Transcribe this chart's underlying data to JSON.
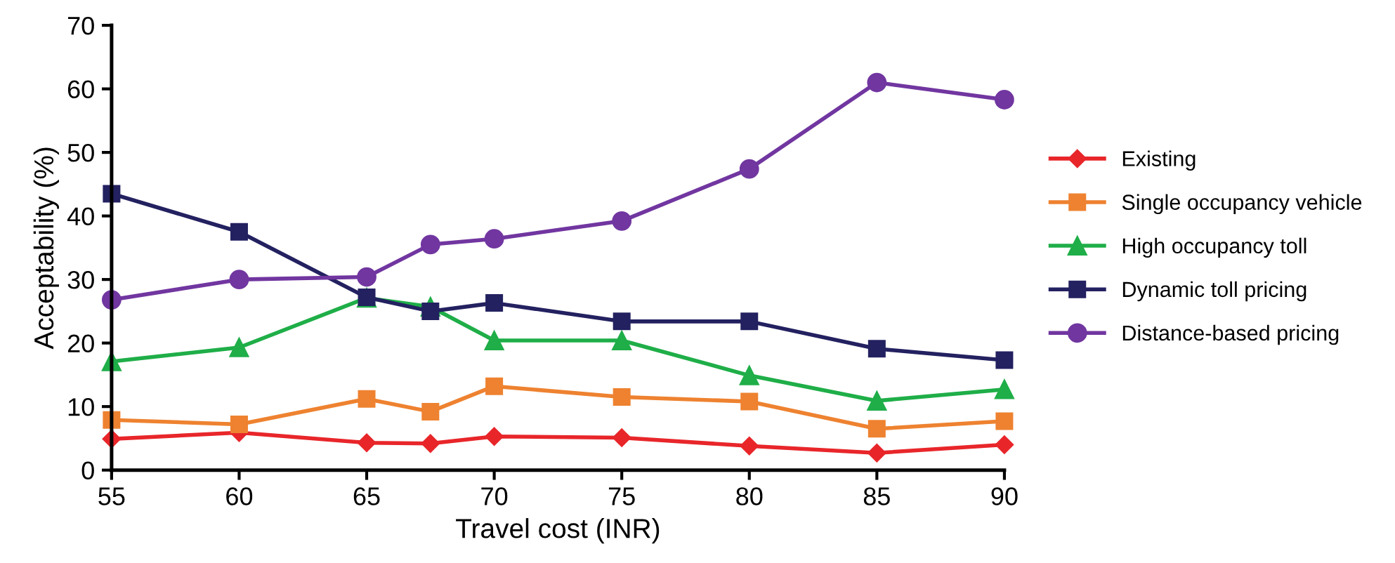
{
  "chart_data": {
    "type": "line",
    "xlabel": "Travel cost (INR)",
    "ylabel": "Acceptability (%)",
    "x": [
      55,
      60,
      65,
      67.5,
      70,
      75,
      80,
      85,
      90
    ],
    "xlim": [
      55,
      90
    ],
    "xticks": [
      55,
      60,
      65,
      70,
      75,
      80,
      85,
      90
    ],
    "ylim": [
      0,
      70
    ],
    "yticks": [
      0,
      10,
      20,
      30,
      40,
      50,
      60,
      70
    ],
    "grid": false,
    "legend": "right",
    "line_style": "solid",
    "series": [
      {
        "name": "Existing",
        "color": "#e8262a",
        "marker": "diamond",
        "values": [
          4.9,
          5.9,
          4.3,
          4.2,
          5.3,
          5.1,
          3.8,
          2.7,
          4.0
        ]
      },
      {
        "name": "Single occupancy vehicle",
        "color": "#ee8230",
        "marker": "square",
        "values": [
          7.9,
          7.2,
          11.2,
          9.2,
          13.2,
          11.5,
          10.8,
          6.5,
          7.7
        ]
      },
      {
        "name": "High occupancy toll",
        "color": "#1fae48",
        "marker": "triangle",
        "values": [
          17.1,
          19.3,
          27.1,
          25.7,
          20.4,
          20.4,
          14.9,
          10.9,
          12.7
        ]
      },
      {
        "name": "Dynamic toll pricing",
        "color": "#232160",
        "marker": "square",
        "values": [
          43.5,
          37.5,
          27.2,
          25.0,
          26.3,
          23.4,
          23.4,
          19.1,
          17.3
        ]
      },
      {
        "name": "Distance-based pricing",
        "color": "#7136a0",
        "marker": "circle",
        "values": [
          26.8,
          30.0,
          30.4,
          35.5,
          36.4,
          39.2,
          47.4,
          61.0,
          58.3
        ]
      }
    ]
  }
}
